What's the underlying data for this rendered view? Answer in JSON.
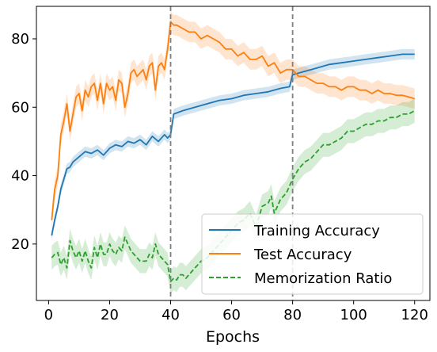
{
  "chart_data": {
    "type": "line",
    "title": "",
    "xlabel": "Epochs",
    "ylabel": "",
    "xlim": [
      -4,
      125
    ],
    "ylim": [
      3.5,
      89.5
    ],
    "xticks": [
      0,
      20,
      40,
      60,
      80,
      100,
      120
    ],
    "yticks": [
      20,
      40,
      60,
      80
    ],
    "grid": false,
    "legend_position": "lower-right",
    "vertical_lines": [
      40,
      80
    ],
    "series": [
      {
        "name": "Training Accuracy",
        "color": "#1f77b4",
        "style": "solid",
        "x": [
          1,
          2,
          3,
          4,
          5,
          6,
          7,
          8,
          10,
          12,
          14,
          16,
          18,
          20,
          22,
          24,
          26,
          28,
          30,
          32,
          34,
          36,
          38,
          39,
          40,
          41,
          44,
          48,
          52,
          56,
          60,
          64,
          68,
          72,
          76,
          79,
          80,
          84,
          88,
          92,
          96,
          100,
          104,
          108,
          112,
          116,
          120
        ],
        "y": [
          22.5,
          27,
          31,
          36,
          39,
          42,
          42.5,
          44,
          45.5,
          47,
          46.5,
          47.5,
          46,
          48,
          49,
          48.5,
          50,
          49.5,
          50.5,
          49,
          51.5,
          50,
          52,
          51,
          52,
          58,
          59,
          60,
          61,
          62,
          62.5,
          63.5,
          64,
          64.5,
          65.5,
          66,
          69.5,
          70.5,
          71.5,
          72.5,
          73,
          73.5,
          74,
          74.5,
          75,
          75.5,
          75.5
        ],
        "band": 1.5
      },
      {
        "name": "Test Accuracy",
        "color": "#ff7f0e",
        "style": "solid",
        "x": [
          1,
          2,
          3,
          4,
          5,
          6,
          7,
          8,
          9,
          10,
          11,
          12,
          13,
          14,
          15,
          16,
          17,
          18,
          19,
          20,
          21,
          22,
          23,
          24,
          25,
          26,
          27,
          28,
          29,
          30,
          31,
          32,
          33,
          34,
          35,
          36,
          37,
          38,
          39,
          40,
          41,
          42,
          44,
          46,
          48,
          50,
          52,
          54,
          56,
          58,
          60,
          62,
          64,
          66,
          68,
          70,
          72,
          74,
          76,
          78,
          80,
          82,
          84,
          86,
          88,
          90,
          92,
          94,
          96,
          98,
          100,
          102,
          104,
          106,
          108,
          110,
          112,
          114,
          116,
          118,
          120
        ],
        "y": [
          27,
          36,
          40,
          52,
          56,
          61,
          53,
          58,
          63,
          64,
          59,
          65,
          63,
          66,
          67,
          62,
          67,
          61,
          67,
          65,
          66,
          62,
          68,
          67,
          60,
          64,
          70,
          71,
          69,
          70,
          71,
          68,
          72,
          73,
          65,
          72,
          73,
          71,
          77,
          85,
          84,
          84,
          83,
          82,
          82,
          80,
          81,
          80,
          79,
          77,
          77,
          75,
          76,
          74,
          74,
          75,
          72,
          73,
          70,
          71,
          71,
          69,
          69,
          68,
          67,
          67,
          66,
          66,
          65,
          66,
          66,
          65,
          65,
          64,
          65,
          64,
          64,
          63.5,
          63.5,
          63,
          62.5
        ],
        "band": 3
      },
      {
        "name": "Memorization Ratio",
        "color": "#2ca02c",
        "style": "dashed",
        "x": [
          1,
          2,
          3,
          4,
          5,
          6,
          7,
          8,
          9,
          10,
          11,
          12,
          13,
          14,
          15,
          16,
          17,
          18,
          19,
          20,
          21,
          22,
          23,
          24,
          25,
          26,
          27,
          28,
          29,
          30,
          31,
          32,
          33,
          34,
          35,
          36,
          37,
          38,
          39,
          40,
          41,
          42,
          43,
          44,
          45,
          46,
          48,
          50,
          52,
          54,
          56,
          58,
          60,
          62,
          64,
          66,
          68,
          70,
          72,
          73,
          74,
          76,
          78,
          80,
          82,
          84,
          86,
          88,
          90,
          92,
          94,
          96,
          98,
          100,
          102,
          104,
          106,
          108,
          110,
          112,
          114,
          116,
          118,
          120
        ],
        "y": [
          16,
          17,
          17.5,
          14,
          16,
          13,
          21,
          18,
          16,
          18,
          15,
          18,
          15,
          13,
          19,
          16,
          20,
          17,
          17,
          20,
          18,
          17,
          19,
          18,
          22,
          20,
          18,
          17,
          16,
          15,
          15,
          15,
          17,
          16,
          20,
          17,
          16,
          15,
          14,
          9,
          10,
          9.5,
          11,
          11,
          10,
          11,
          13,
          15,
          16,
          18,
          20,
          22,
          24,
          26,
          27,
          29,
          25,
          31,
          32,
          34,
          29,
          33,
          35,
          39,
          42,
          44,
          45,
          47,
          49,
          49,
          50,
          51,
          53,
          53,
          54,
          55,
          55,
          56,
          56,
          57,
          57,
          58,
          58,
          59
        ],
        "band": 3.5
      }
    ]
  }
}
